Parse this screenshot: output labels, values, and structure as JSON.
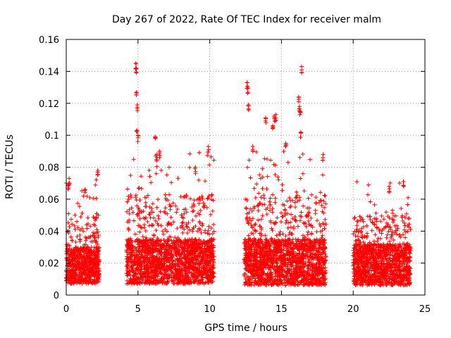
{
  "chart_data": {
    "type": "scatter",
    "title": "Day 267 of 2022, Rate Of TEC Index for receiver malm",
    "xlabel": "GPS time / hours",
    "ylabel": "ROTI / TECUs",
    "xlim": [
      0,
      25
    ],
    "ylim": [
      0,
      0.16
    ],
    "xticks": [
      0,
      5,
      10,
      15,
      20,
      25
    ],
    "xtick_labels": [
      "0",
      "5",
      "10",
      "15",
      "20",
      "25"
    ],
    "yticks": [
      0,
      0.02,
      0.04,
      0.06,
      0.08,
      0.1,
      0.12,
      0.14,
      0.16
    ],
    "ytick_labels": [
      "0",
      "0.02",
      "0.04",
      "0.06",
      "0.08",
      "0.1",
      "0.12",
      "0.14",
      "0.16"
    ],
    "grid": true,
    "marker": "+",
    "series": [
      {
        "name": "ROTI",
        "color": "#ff0000",
        "segments": [
          {
            "start": 0.0,
            "end": 2.3,
            "base_low": 0.007,
            "base_high": 0.03,
            "peak": 0.073
          },
          {
            "start": 4.2,
            "end": 10.3,
            "base_low": 0.007,
            "base_high": 0.035,
            "peak": 0.09
          },
          {
            "start": 12.4,
            "end": 18.1,
            "base_low": 0.006,
            "base_high": 0.035,
            "peak": 0.09
          },
          {
            "start": 20.0,
            "end": 24.0,
            "base_low": 0.006,
            "base_high": 0.032,
            "peak": 0.071
          }
        ],
        "spikes": [
          {
            "x": 0.2,
            "y": 0.073
          },
          {
            "x": 0.15,
            "y": 0.069
          },
          {
            "x": 1.3,
            "y": 0.066
          },
          {
            "x": 2.2,
            "y": 0.078
          },
          {
            "x": 4.85,
            "y": 0.145
          },
          {
            "x": 4.88,
            "y": 0.142
          },
          {
            "x": 4.9,
            "y": 0.127
          },
          {
            "x": 4.95,
            "y": 0.119
          },
          {
            "x": 5.0,
            "y": 0.1
          },
          {
            "x": 4.92,
            "y": 0.103
          },
          {
            "x": 6.2,
            "y": 0.099
          },
          {
            "x": 6.3,
            "y": 0.088
          },
          {
            "x": 6.5,
            "y": 0.09
          },
          {
            "x": 9.9,
            "y": 0.093
          },
          {
            "x": 9.0,
            "y": 0.08
          },
          {
            "x": 12.6,
            "y": 0.133
          },
          {
            "x": 12.65,
            "y": 0.13
          },
          {
            "x": 12.7,
            "y": 0.119
          },
          {
            "x": 13.0,
            "y": 0.093
          },
          {
            "x": 13.9,
            "y": 0.111
          },
          {
            "x": 14.4,
            "y": 0.106
          },
          {
            "x": 14.5,
            "y": 0.112
          },
          {
            "x": 14.6,
            "y": 0.113
          },
          {
            "x": 15.3,
            "y": 0.095
          },
          {
            "x": 16.2,
            "y": 0.124
          },
          {
            "x": 16.25,
            "y": 0.118
          },
          {
            "x": 16.3,
            "y": 0.115
          },
          {
            "x": 16.4,
            "y": 0.143
          },
          {
            "x": 16.35,
            "y": 0.102
          },
          {
            "x": 17.9,
            "y": 0.088
          },
          {
            "x": 23.5,
            "y": 0.071
          },
          {
            "x": 22.5,
            "y": 0.068
          }
        ]
      }
    ]
  }
}
